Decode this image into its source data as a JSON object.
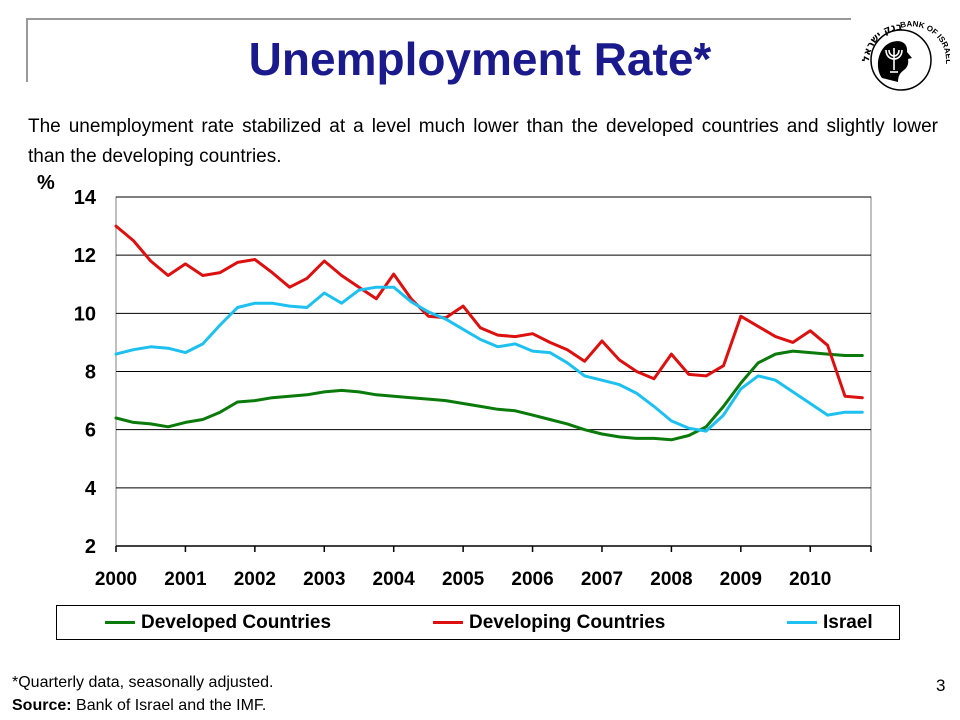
{
  "slide": {
    "title": "Unemployment Rate*",
    "subtitle": "The unemployment rate stabilized at a level much lower than the developed countries and slightly lower than the developing countries.",
    "footnote": "*Quarterly data, seasonally adjusted.",
    "source_label": "Source:",
    "source_text": " Bank of Israel and the IMF.",
    "page_number": "3",
    "logo_text": "BANK OF ISRAEL",
    "logo_text_hebrew": "בנק ישראל",
    "title_color": "#1a1a8c"
  },
  "chart_data": {
    "type": "line",
    "ylabel": "%",
    "ylim": [
      2,
      14
    ],
    "yticks": [
      "2",
      "4",
      "6",
      "8",
      "10",
      "12",
      "14"
    ],
    "xlim": [
      2000,
      2010.875
    ],
    "xticks": [
      "2000",
      "2001",
      "2002",
      "2003",
      "2004",
      "2005",
      "2006",
      "2007",
      "2008",
      "2009",
      "2010"
    ],
    "grid": "horizontal",
    "legend_position": "bottom",
    "x": [
      2000.0,
      2000.25,
      2000.5,
      2000.75,
      2001.0,
      2001.25,
      2001.5,
      2001.75,
      2002.0,
      2002.25,
      2002.5,
      2002.75,
      2003.0,
      2003.25,
      2003.5,
      2003.75,
      2004.0,
      2004.25,
      2004.5,
      2004.75,
      2005.0,
      2005.25,
      2005.5,
      2005.75,
      2006.0,
      2006.25,
      2006.5,
      2006.75,
      2007.0,
      2007.25,
      2007.5,
      2007.75,
      2008.0,
      2008.25,
      2008.5,
      2008.75,
      2009.0,
      2009.25,
      2009.5,
      2009.75,
      2010.0,
      2010.25,
      2010.5,
      2010.75
    ],
    "series": [
      {
        "name": "Developed Countries",
        "color": "#0a7a0a",
        "values": [
          6.4,
          6.25,
          6.2,
          6.1,
          6.25,
          6.35,
          6.6,
          6.95,
          7.0,
          7.1,
          7.15,
          7.2,
          7.3,
          7.35,
          7.3,
          7.2,
          7.15,
          7.1,
          7.05,
          7.0,
          6.9,
          6.8,
          6.7,
          6.65,
          6.5,
          6.35,
          6.2,
          6.0,
          5.85,
          5.75,
          5.7,
          5.7,
          5.65,
          5.8,
          6.1,
          6.8,
          7.6,
          8.3,
          8.6,
          8.7,
          8.65,
          8.6,
          8.55,
          8.55
        ]
      },
      {
        "name": "Developing Countries",
        "color": "#dd1010",
        "values": [
          13.0,
          12.5,
          11.8,
          11.3,
          11.7,
          11.3,
          11.4,
          11.75,
          11.85,
          11.4,
          10.9,
          11.2,
          11.8,
          11.3,
          10.9,
          10.5,
          11.35,
          10.5,
          9.9,
          9.85,
          10.25,
          9.5,
          9.25,
          9.2,
          9.3,
          9.0,
          8.75,
          8.35,
          9.05,
          8.4,
          8.0,
          7.75,
          8.6,
          7.9,
          7.85,
          8.2,
          9.9,
          9.55,
          9.2,
          9.0,
          9.4,
          8.9,
          7.15,
          7.1
        ]
      },
      {
        "name": "Israel",
        "color": "#1ec0f0",
        "values": [
          8.6,
          8.75,
          8.85,
          8.8,
          8.65,
          8.95,
          9.6,
          10.2,
          10.35,
          10.35,
          10.25,
          10.2,
          10.7,
          10.35,
          10.8,
          10.9,
          10.9,
          10.4,
          10.05,
          9.8,
          9.45,
          9.1,
          8.85,
          8.95,
          8.7,
          8.65,
          8.3,
          7.85,
          7.7,
          7.55,
          7.25,
          6.8,
          6.3,
          6.05,
          5.95,
          6.5,
          7.4,
          7.85,
          7.7,
          7.3,
          6.9,
          6.5,
          6.6,
          6.6
        ]
      }
    ]
  }
}
